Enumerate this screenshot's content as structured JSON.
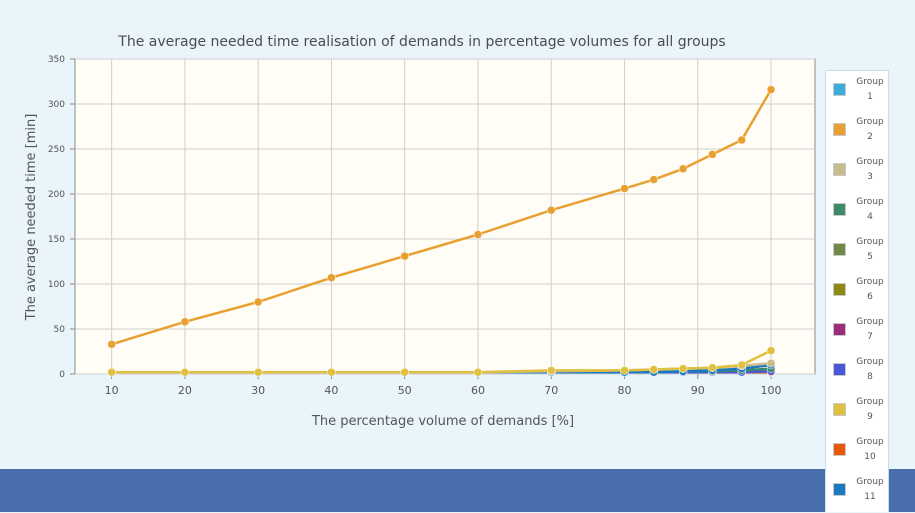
{
  "chart_data": {
    "type": "line",
    "title": "The average needed time realisation of demands in percentage volumes for all groups",
    "xlabel": "The percentage volume of demands [%]",
    "ylabel": "The average needed time [min]",
    "xlim": [
      5,
      106
    ],
    "ylim": [
      0,
      350
    ],
    "x_ticks": [
      10,
      20,
      30,
      40,
      50,
      60,
      70,
      80,
      90,
      100
    ],
    "y_ticks": [
      0,
      50,
      100,
      150,
      200,
      250,
      300,
      350
    ],
    "grid": true,
    "legend_position": "right",
    "series": [
      {
        "name": "Group 1",
        "label_lines": [
          "Group",
          "1"
        ],
        "color": "#3aaed8",
        "x": [
          10,
          20,
          30,
          40,
          50,
          60,
          70,
          80,
          84,
          88,
          92,
          96,
          100
        ],
        "y": [
          2,
          2,
          2,
          2,
          2,
          2,
          2,
          2,
          2,
          2,
          2,
          2,
          2
        ]
      },
      {
        "name": "Group 2",
        "label_lines": [
          "Group",
          "2"
        ],
        "color": "#e8a030",
        "x": [
          10,
          20,
          30,
          40,
          50,
          60,
          70,
          80,
          84,
          88,
          92,
          96,
          100
        ],
        "y": [
          33,
          58,
          80,
          107,
          131,
          155,
          182,
          206,
          216,
          228,
          244,
          260,
          316
        ]
      },
      {
        "name": "Group 3",
        "label_lines": [
          "Group",
          "3"
        ],
        "color": "#c7bc8c",
        "x": [
          10,
          20,
          30,
          40,
          50,
          60,
          70,
          80,
          84,
          88,
          92,
          96,
          100
        ],
        "y": [
          2,
          2,
          2,
          2,
          2,
          2,
          3,
          4,
          5,
          6,
          7,
          9,
          12
        ]
      },
      {
        "name": "Group 4",
        "label_lines": [
          "Group",
          "4"
        ],
        "color": "#3e8a68",
        "x": [
          10,
          20,
          30,
          40,
          50,
          60,
          70,
          80,
          84,
          88,
          92,
          96,
          100
        ],
        "y": [
          2,
          2,
          2,
          2,
          2,
          2,
          2,
          2,
          2,
          3,
          3,
          4,
          6
        ]
      },
      {
        "name": "Group 5",
        "label_lines": [
          "Group",
          "5"
        ],
        "color": "#6f8a48",
        "x": [
          10,
          20,
          30,
          40,
          50,
          60,
          70,
          80,
          84,
          88,
          92,
          96,
          100
        ],
        "y": [
          2,
          2,
          2,
          2,
          2,
          2,
          2,
          2,
          2,
          2,
          2,
          2,
          3
        ]
      },
      {
        "name": "Group 6",
        "label_lines": [
          "Group",
          "6"
        ],
        "color": "#8c8a10",
        "x": [
          10,
          20,
          30,
          40,
          50,
          60,
          70,
          80,
          84,
          88,
          92,
          96,
          100
        ],
        "y": [
          2,
          2,
          2,
          2,
          2,
          2,
          2,
          2,
          2,
          2,
          2,
          2,
          2
        ]
      },
      {
        "name": "Group 7",
        "label_lines": [
          "Group",
          "7"
        ],
        "color": "#9a2e7a",
        "x": [
          10,
          20,
          30,
          40,
          50,
          60,
          70,
          80,
          84,
          88,
          92,
          96,
          100
        ],
        "y": [
          2,
          2,
          2,
          2,
          2,
          2,
          2,
          2,
          2,
          2,
          2,
          2,
          2
        ]
      },
      {
        "name": "Group 8",
        "label_lines": [
          "Group",
          "8"
        ],
        "color": "#4a55d8",
        "x": [
          10,
          20,
          30,
          40,
          50,
          60,
          70,
          80,
          84,
          88,
          92,
          96,
          100
        ],
        "y": [
          2,
          2,
          2,
          2,
          2,
          2,
          2,
          2,
          2,
          2,
          2,
          2,
          3
        ]
      },
      {
        "name": "Group 9",
        "label_lines": [
          "Group",
          "9"
        ],
        "color": "#e0c040",
        "x": [
          10,
          20,
          30,
          40,
          50,
          60,
          70,
          80,
          84,
          88,
          92,
          96,
          100
        ],
        "y": [
          2,
          2,
          2,
          2,
          2,
          2,
          4,
          4,
          5,
          6,
          7,
          10,
          26
        ]
      },
      {
        "name": "Group 10",
        "label_lines": [
          "Group",
          "10"
        ],
        "color": "#e8580c",
        "x": [
          10,
          20,
          30,
          40,
          50,
          60,
          70,
          80,
          84,
          88,
          92,
          96,
          100
        ],
        "y": [
          2,
          2,
          2,
          2,
          2,
          2,
          2,
          2,
          2,
          2,
          2,
          2,
          2
        ]
      },
      {
        "name": "Group 11",
        "label_lines": [
          "Group",
          "11"
        ],
        "color": "#1a78c0",
        "x": [
          10,
          20,
          30,
          40,
          50,
          60,
          70,
          80,
          84,
          88,
          92,
          96,
          100
        ],
        "y": [
          2,
          2,
          2,
          2,
          2,
          2,
          2,
          2,
          2,
          3,
          4,
          6,
          10
        ]
      }
    ]
  }
}
